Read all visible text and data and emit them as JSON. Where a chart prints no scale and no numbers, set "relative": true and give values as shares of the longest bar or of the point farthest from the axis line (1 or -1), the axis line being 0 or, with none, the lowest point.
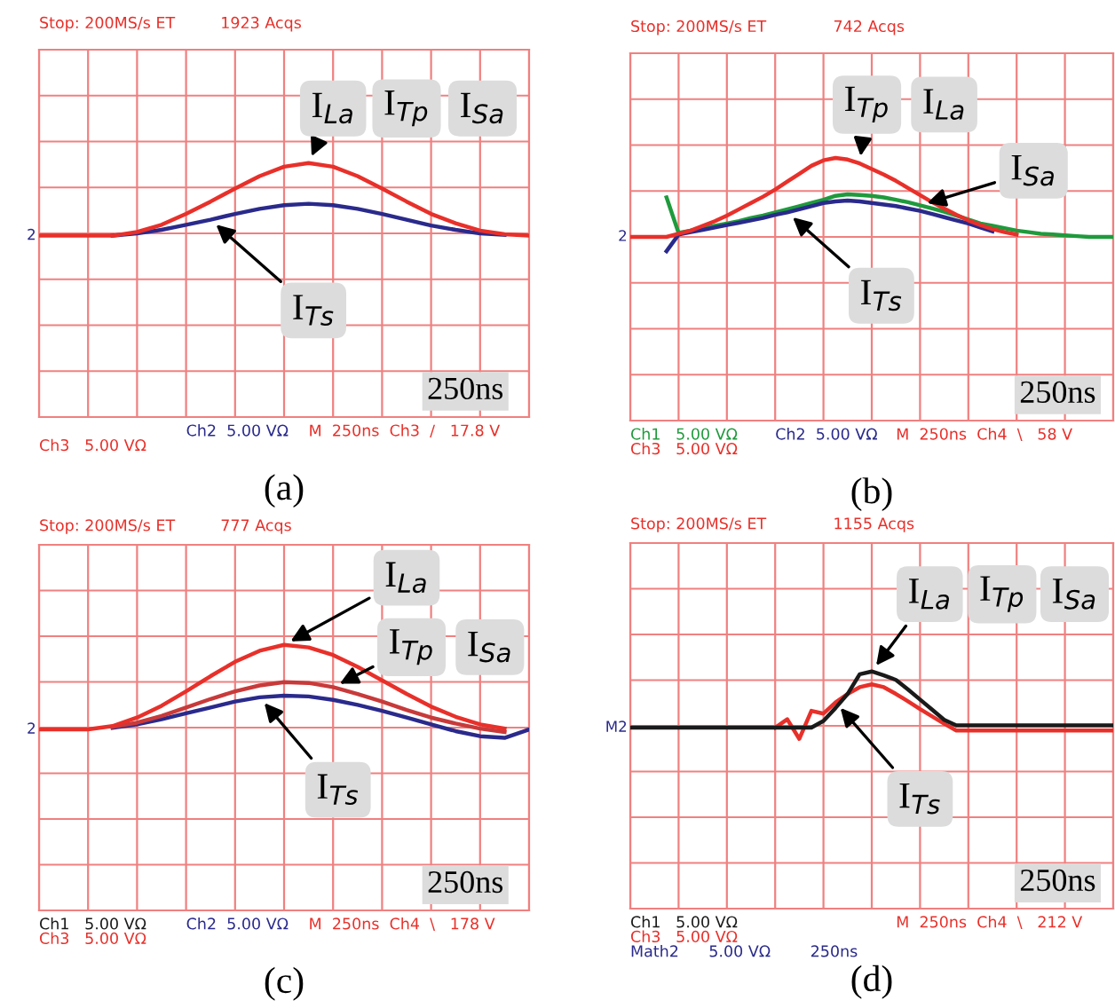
{
  "chart_data": [
    {
      "type": "line",
      "relative": true,
      "xlabel": "(a)",
      "grid": true,
      "categories": [
        null,
        null,
        null,
        null,
        null,
        null,
        null,
        null,
        null,
        null,
        null,
        null,
        null,
        null,
        null,
        null,
        null,
        null,
        null,
        null,
        null
      ],
      "series": [
        {
          "color": "#e8302a",
          "values": [
            0,
            0,
            0,
            0,
            0.05,
            0.15,
            0.3,
            0.47,
            0.65,
            0.82,
            0.95,
            1.0,
            0.95,
            0.82,
            0.65,
            0.47,
            0.3,
            0.17,
            0.07,
            0.02,
            0
          ]
        },
        {
          "color": "#2a2a8c",
          "values": [
            null,
            null,
            null,
            0,
            0.03,
            0.08,
            0.15,
            0.22,
            0.3,
            0.37,
            0.42,
            0.44,
            0.42,
            0.37,
            0.3,
            0.22,
            0.14,
            0.08,
            0.03,
            0.01,
            null
          ]
        }
      ],
      "annotations": [
        "Stop: 200MS/s ET",
        "1923 Acqs",
        "Ch2  5.00 VΩ",
        "M  250ns  Ch3  /   17.8 V",
        "Ch3   5.00 VΩ",
        "2",
        "I$_{La}$",
        "I$_{Tp}$",
        "I$_{Sa}$",
        "I$_{Ts}$",
        "250ns"
      ]
    },
    {
      "type": "line",
      "relative": true,
      "xlabel": "(b)",
      "grid": true,
      "categories": [
        null,
        null,
        null,
        null,
        null,
        null,
        null,
        null,
        null,
        null,
        null,
        null,
        null,
        null,
        null,
        null,
        null,
        null,
        null,
        null,
        null,
        null,
        null,
        null,
        null,
        null,
        null,
        null,
        null,
        null,
        null,
        null,
        null,
        null,
        null,
        null,
        null,
        null,
        null,
        null,
        null
      ],
      "series": [
        {
          "color": "#e8302a",
          "values": [
            0,
            0,
            0,
            0,
            0.04,
            0.08,
            0.14,
            0.2,
            0.27,
            0.35,
            0.43,
            0.51,
            0.6,
            0.7,
            0.8,
            0.9,
            0.97,
            1.0,
            0.98,
            0.93,
            0.86,
            0.79,
            0.71,
            0.62,
            0.53,
            0.44,
            0.36,
            0.28,
            0.21,
            0.15,
            0.1,
            0.06,
            0.03,
            null,
            null,
            null,
            null,
            null,
            null,
            null,
            null
          ]
        },
        {
          "color": "#2a2a8c",
          "values": [
            null,
            null,
            null,
            -0.18,
            0.03,
            0.06,
            0.09,
            0.12,
            0.15,
            0.18,
            0.21,
            0.24,
            0.28,
            0.31,
            0.35,
            0.39,
            0.43,
            0.45,
            0.46,
            0.45,
            0.43,
            0.41,
            0.39,
            0.36,
            0.33,
            0.29,
            0.25,
            0.21,
            0.17,
            0.12,
            0.07,
            null,
            null,
            null,
            null,
            null,
            null,
            null,
            null,
            null,
            null
          ]
        },
        {
          "color": "#1f9a3c",
          "values": [
            null,
            null,
            null,
            0.5,
            0.05,
            0.08,
            0.11,
            0.14,
            0.17,
            0.2,
            0.24,
            0.27,
            0.31,
            0.35,
            0.39,
            0.43,
            0.47,
            0.52,
            0.54,
            0.53,
            0.52,
            0.5,
            0.47,
            0.44,
            0.4,
            0.36,
            0.32,
            0.27,
            0.22,
            0.17,
            0.14,
            0.11,
            0.08,
            0.06,
            0.04,
            0.03,
            0.02,
            0.01,
            0,
            0,
            0
          ]
        }
      ],
      "annotations": [
        "Stop: 200MS/s ET",
        "742 Acqs",
        "Ch1   5.00 VΩ",
        "Ch2  5.00 VΩ",
        "M  250ns  Ch4  \\   58 V",
        "Ch3   5.00 VΩ",
        "2",
        "I$_{Tp}$",
        "I$_{La}$",
        "I$_{Sa}$",
        "I$_{Ts}$",
        "250ns"
      ]
    },
    {
      "type": "line",
      "relative": true,
      "xlabel": "(c)",
      "grid": true,
      "categories": [
        null,
        null,
        null,
        null,
        null,
        null,
        null,
        null,
        null,
        null,
        null,
        null,
        null,
        null,
        null,
        null,
        null,
        null,
        null,
        null,
        null
      ],
      "series": [
        {
          "color": "#e8302a",
          "values": [
            0,
            0,
            0,
            0.04,
            0.14,
            0.28,
            0.45,
            0.63,
            0.8,
            0.93,
            1.0,
            0.97,
            0.88,
            0.74,
            0.58,
            0.42,
            0.27,
            0.15,
            0.06,
            0.01,
            null
          ]
        },
        {
          "color": "#c83a3a",
          "values": [
            null,
            null,
            null,
            0.03,
            0.08,
            0.16,
            0.26,
            0.36,
            0.45,
            0.52,
            0.56,
            0.55,
            0.5,
            0.42,
            0.33,
            0.23,
            0.14,
            0.07,
            0.01,
            -0.03,
            null
          ]
        },
        {
          "color": "#2a2a8c",
          "values": [
            null,
            null,
            null,
            0.02,
            0.06,
            0.12,
            0.19,
            0.26,
            0.33,
            0.38,
            0.4,
            0.39,
            0.35,
            0.29,
            0.22,
            0.14,
            0.06,
            -0.02,
            -0.08,
            -0.1,
            0
          ]
        }
      ],
      "annotations": [
        "Stop: 200MS/s ET",
        "777 Acqs",
        "Ch1   5.00 VΩ",
        "Ch2  5.00 VΩ",
        "M  250ns  Ch4  \\   178 V",
        "Ch3   5.00 VΩ",
        "2",
        "I$_{La}$",
        "I$_{Tp}$",
        "I$_{Sa}$",
        "I$_{Ts}$",
        "250ns"
      ]
    },
    {
      "type": "line",
      "relative": true,
      "xlabel": "(d)",
      "grid": true,
      "categories": [
        null,
        null,
        null,
        null,
        null,
        null,
        null,
        null,
        null,
        null,
        null,
        null,
        null,
        null,
        null,
        null,
        null,
        null,
        null,
        null,
        null,
        null,
        null,
        null,
        null,
        null,
        null,
        null,
        null,
        null,
        null,
        null,
        null,
        null,
        null,
        null,
        null,
        null,
        null,
        null,
        null
      ],
      "series": [
        {
          "color": "#1a1a1a",
          "values": [
            0,
            0,
            0,
            0,
            0,
            0,
            0,
            0,
            0,
            0,
            0,
            0,
            0,
            0,
            0,
            0,
            0.12,
            0.35,
            0.6,
            0.95,
            1.0,
            0.93,
            0.85,
            0.68,
            0.5,
            0.32,
            0.14,
            0.04,
            0.04,
            0.04,
            0.04,
            0.04,
            0.04,
            0.04,
            0.04,
            0.04,
            0.04,
            0.04,
            0.04,
            0.04,
            0.04
          ]
        },
        {
          "color": "#e8302a",
          "values": [
            null,
            null,
            null,
            null,
            null,
            null,
            null,
            null,
            null,
            null,
            null,
            null,
            0,
            0.15,
            -0.2,
            0.3,
            0.25,
            0.45,
            0.6,
            0.72,
            0.77,
            0.72,
            0.6,
            0.47,
            0.33,
            0.2,
            0.07,
            -0.05,
            -0.05,
            -0.05,
            -0.05,
            -0.05,
            -0.05,
            -0.05,
            -0.05,
            -0.05,
            -0.05,
            -0.05,
            -0.05,
            -0.05,
            -0.05
          ]
        }
      ],
      "annotations": [
        "Stop: 200MS/s ET",
        "1155 Acqs",
        "Ch1   5.00 VΩ",
        "M  250ns  Ch4  \\   212 V",
        "Ch3   5.00 VΩ",
        "Math2      5.00 VΩ        250ns",
        "M2",
        "I$_{La}$",
        "I$_{Tp}$",
        "I$_{Sa}$",
        "I$_{Ts}$",
        "250ns"
      ]
    }
  ]
}
